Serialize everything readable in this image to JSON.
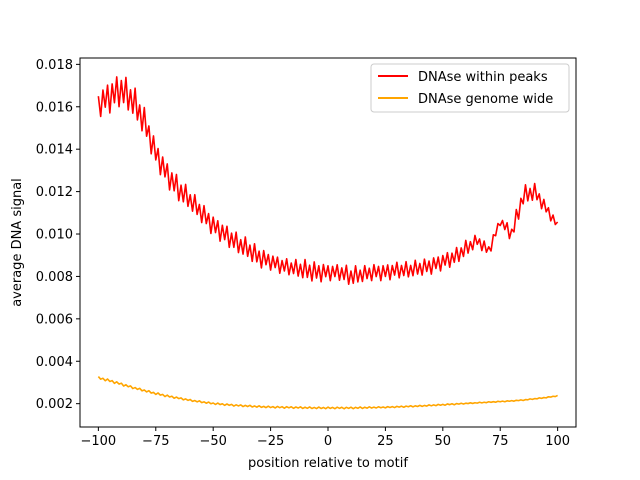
{
  "chart_data": {
    "type": "line",
    "title": "",
    "xlabel": "position relative to motif",
    "ylabel": "average DNA signal",
    "xlim": [
      -108,
      108
    ],
    "ylim": [
      0.0009,
      0.0183
    ],
    "xticks": [
      -100,
      -75,
      -50,
      -25,
      0,
      25,
      50,
      75,
      100
    ],
    "xtick_labels": [
      "−100",
      "−75",
      "−50",
      "−25",
      "0",
      "25",
      "50",
      "75",
      "100"
    ],
    "yticks": [
      0.002,
      0.004,
      0.006,
      0.008,
      0.01,
      0.012,
      0.014,
      0.016,
      0.018
    ],
    "ytick_labels": [
      "0.002",
      "0.004",
      "0.006",
      "0.008",
      "0.010",
      "0.012",
      "0.014",
      "0.016",
      "0.018"
    ],
    "grid": false,
    "legend_position": "top-right",
    "x": [
      -100,
      -95,
      -90,
      -85,
      -80,
      -75,
      -70,
      -65,
      -60,
      -55,
      -50,
      -45,
      -40,
      -35,
      -30,
      -25,
      -20,
      -15,
      -10,
      -5,
      0,
      5,
      10,
      15,
      20,
      25,
      30,
      35,
      40,
      45,
      50,
      55,
      60,
      65,
      70,
      75,
      80,
      85,
      90,
      95,
      100
    ],
    "series": [
      {
        "name": "DNAse within peaks",
        "color": "#ff0000",
        "values": [
          0.0161,
          0.0165,
          0.0168,
          0.0163,
          0.0153,
          0.0138,
          0.0128,
          0.0121,
          0.0116,
          0.011,
          0.0104,
          0.01,
          0.0096,
          0.0093,
          0.0089,
          0.0087,
          0.0085,
          0.0084,
          0.0083,
          0.0082,
          0.0082,
          0.0082,
          0.008,
          0.0081,
          0.0082,
          0.0082,
          0.0083,
          0.0083,
          0.0084,
          0.0085,
          0.0087,
          0.0089,
          0.0093,
          0.0097,
          0.0092,
          0.0106,
          0.01,
          0.0118,
          0.012,
          0.0112,
          0.0104
        ],
        "noise_amplitude": [
          0.0006,
          0.0008,
          0.0008,
          0.0008,
          0.0007,
          0.0006,
          0.0006,
          0.0006,
          0.0005,
          0.0005,
          0.0005,
          0.0005,
          0.0005,
          0.0005,
          0.0005,
          0.0004,
          0.0004,
          0.0004,
          0.0005,
          0.0005,
          0.0004,
          0.0004,
          0.0005,
          0.0004,
          0.0004,
          0.0004,
          0.0004,
          0.0004,
          0.0004,
          0.0004,
          0.0004,
          0.0004,
          0.0004,
          0.0003,
          0.0003,
          0.0002,
          0.0004,
          0.0005,
          0.0004,
          0.0003,
          0.0002
        ]
      },
      {
        "name": "DNAse genome wide",
        "color": "#ffa500",
        "values": [
          0.00322,
          0.00308,
          0.00292,
          0.00276,
          0.00262,
          0.00248,
          0.00236,
          0.00226,
          0.00216,
          0.00208,
          0.00201,
          0.00196,
          0.00192,
          0.00189,
          0.00186,
          0.00184,
          0.00183,
          0.00182,
          0.00181,
          0.0018,
          0.0018,
          0.0018,
          0.0018,
          0.00181,
          0.00182,
          0.00183,
          0.00185,
          0.00187,
          0.00189,
          0.00192,
          0.00195,
          0.00198,
          0.00201,
          0.00204,
          0.00207,
          0.0021,
          0.00213,
          0.00217,
          0.00223,
          0.00229,
          0.00237
        ],
        "noise_amplitude": [
          6e-05,
          6e-05,
          6e-05,
          5e-05,
          5e-05,
          5e-05,
          5e-05,
          4e-05,
          4e-05,
          4e-05,
          4e-05,
          4e-05,
          4e-05,
          4e-05,
          4e-05,
          4e-05,
          4e-05,
          4e-05,
          4e-05,
          4e-05,
          4e-05,
          4e-05,
          4e-05,
          4e-05,
          3e-05,
          3e-05,
          3e-05,
          3e-05,
          3e-05,
          3e-05,
          3e-05,
          3e-05,
          2e-05,
          2e-05,
          2e-05,
          2e-05,
          2e-05,
          2e-05,
          2e-05,
          2e-05,
          2e-05
        ]
      }
    ]
  }
}
